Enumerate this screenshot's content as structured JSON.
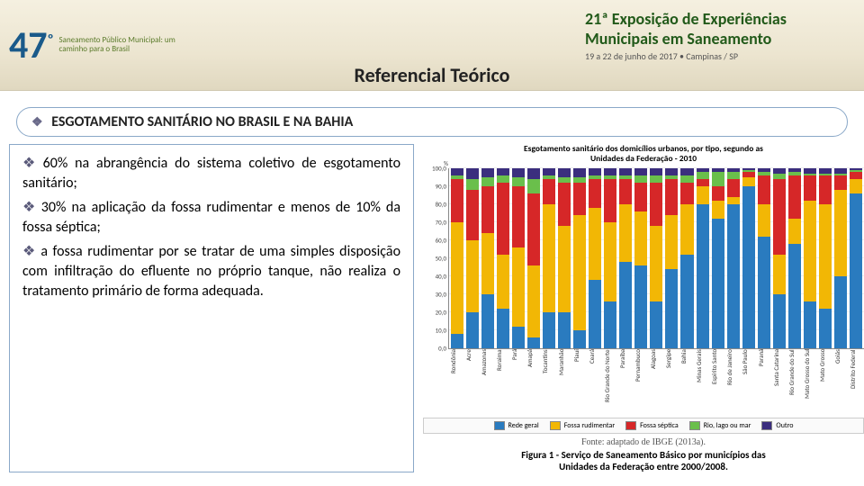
{
  "header": {
    "congress_number": "47",
    "congress_ordinal": "º",
    "congress_sub": "Saneamento Público Municipal: um caminho para o Brasil",
    "expo_line1": "21ª Exposição de Experiências",
    "expo_line2": "Municipais em Saneamento",
    "expo_line3": "19 a 22 de junho de 2017 • Campinas / SP",
    "title": "Referencial Teórico"
  },
  "subheader": "ESGOTAMENTO SANITÁRIO NO BRASIL E NA BAHIA",
  "bullets": [
    "60% na abrangência do sistema coletivo de esgotamento sanitário;",
    "30% na aplicação da fossa rudimentar e menos de 10% da fossa séptica;",
    "a fossa rudimentar por se tratar de uma simples disposição com infiltração do efluente no próprio tanque, não realiza o tratamento primário de forma adequada."
  ],
  "chart": {
    "title_l1": "Esgotamento sanitário dos domicílios urbanos, por tipo, segundo as",
    "title_l2": "Unidades da Federação - 2010",
    "ylabel": "%",
    "ylim": [
      0,
      100
    ],
    "ytick_step": 10,
    "grid_color": "#eeeeee",
    "axis_color": "#888888",
    "background": "#ffffff",
    "series": [
      {
        "key": "rede",
        "label": "Rede geral",
        "color": "#2a7bbf"
      },
      {
        "key": "rudim",
        "label": "Fossa rudimentar",
        "color": "#f2b705"
      },
      {
        "key": "sept",
        "label": "Fossa séptica",
        "color": "#d62728"
      },
      {
        "key": "rio",
        "label": "Rio, lago ou mar",
        "color": "#6abf4b"
      },
      {
        "key": "outro",
        "label": "Outro",
        "color": "#3b2e7e"
      }
    ],
    "categories": [
      {
        "label": "Rondônia",
        "rede": 8,
        "rudim": 62,
        "sept": 24,
        "rio": 2,
        "outro": 4
      },
      {
        "label": "Acre",
        "rede": 20,
        "rudim": 40,
        "sept": 28,
        "rio": 6,
        "outro": 6
      },
      {
        "label": "Amazonas",
        "rede": 30,
        "rudim": 34,
        "sept": 26,
        "rio": 5,
        "outro": 5
      },
      {
        "label": "Roraima",
        "rede": 22,
        "rudim": 30,
        "sept": 40,
        "rio": 4,
        "outro": 4
      },
      {
        "label": "Pará",
        "rede": 12,
        "rudim": 44,
        "sept": 34,
        "rio": 5,
        "outro": 5
      },
      {
        "label": "Amapá",
        "rede": 6,
        "rudim": 40,
        "sept": 40,
        "rio": 8,
        "outro": 6
      },
      {
        "label": "Tocantins",
        "rede": 20,
        "rudim": 60,
        "sept": 14,
        "rio": 2,
        "outro": 4
      },
      {
        "label": "Maranhão",
        "rede": 20,
        "rudim": 48,
        "sept": 24,
        "rio": 3,
        "outro": 5
      },
      {
        "label": "Piauí",
        "rede": 10,
        "rudim": 64,
        "sept": 18,
        "rio": 3,
        "outro": 5
      },
      {
        "label": "Ceará",
        "rede": 38,
        "rudim": 40,
        "sept": 16,
        "rio": 2,
        "outro": 4
      },
      {
        "label": "Rio Grande do Norte",
        "rede": 26,
        "rudim": 44,
        "sept": 24,
        "rio": 2,
        "outro": 4
      },
      {
        "label": "Paraíba",
        "rede": 48,
        "rudim": 32,
        "sept": 14,
        "rio": 2,
        "outro": 4
      },
      {
        "label": "Pernambuco",
        "rede": 46,
        "rudim": 30,
        "sept": 16,
        "rio": 4,
        "outro": 4
      },
      {
        "label": "Alagoas",
        "rede": 26,
        "rudim": 42,
        "sept": 24,
        "rio": 4,
        "outro": 4
      },
      {
        "label": "Sergipe",
        "rede": 44,
        "rudim": 30,
        "sept": 20,
        "rio": 2,
        "outro": 4
      },
      {
        "label": "Bahia",
        "rede": 52,
        "rudim": 28,
        "sept": 12,
        "rio": 4,
        "outro": 4
      },
      {
        "label": "Minas Gerais",
        "rede": 80,
        "rudim": 10,
        "sept": 4,
        "rio": 4,
        "outro": 2
      },
      {
        "label": "Espírito Santo",
        "rede": 72,
        "rudim": 10,
        "sept": 8,
        "rio": 8,
        "outro": 2
      },
      {
        "label": "Rio de Janeiro",
        "rede": 80,
        "rudim": 4,
        "sept": 10,
        "rio": 4,
        "outro": 2
      },
      {
        "label": "São Paulo",
        "rede": 90,
        "rudim": 5,
        "sept": 3,
        "rio": 1,
        "outro": 1
      },
      {
        "label": "Paraná",
        "rede": 62,
        "rudim": 18,
        "sept": 16,
        "rio": 2,
        "outro": 2
      },
      {
        "label": "Santa Catarina",
        "rede": 30,
        "rudim": 22,
        "sept": 42,
        "rio": 3,
        "outro": 3
      },
      {
        "label": "Rio Grande do Sul",
        "rede": 58,
        "rudim": 14,
        "sept": 24,
        "rio": 2,
        "outro": 2
      },
      {
        "label": "Mato Grosso do Sul",
        "rede": 26,
        "rudim": 56,
        "sept": 14,
        "rio": 1,
        "outro": 3
      },
      {
        "label": "Mato Grosso",
        "rede": 22,
        "rudim": 58,
        "sept": 16,
        "rio": 1,
        "outro": 3
      },
      {
        "label": "Goiás",
        "rede": 40,
        "rudim": 48,
        "sept": 8,
        "rio": 1,
        "outro": 3
      },
      {
        "label": "Distrito Federal",
        "rede": 86,
        "rudim": 8,
        "sept": 4,
        "rio": 1,
        "outro": 1
      }
    ],
    "source": "Fonte: adaptado de IBGE (2013a).",
    "caption_l1": "Figura 1 - Serviço de Saneamento Básico por municípios das",
    "caption_l2": "Unidades da Federação entre 2000/2008."
  }
}
